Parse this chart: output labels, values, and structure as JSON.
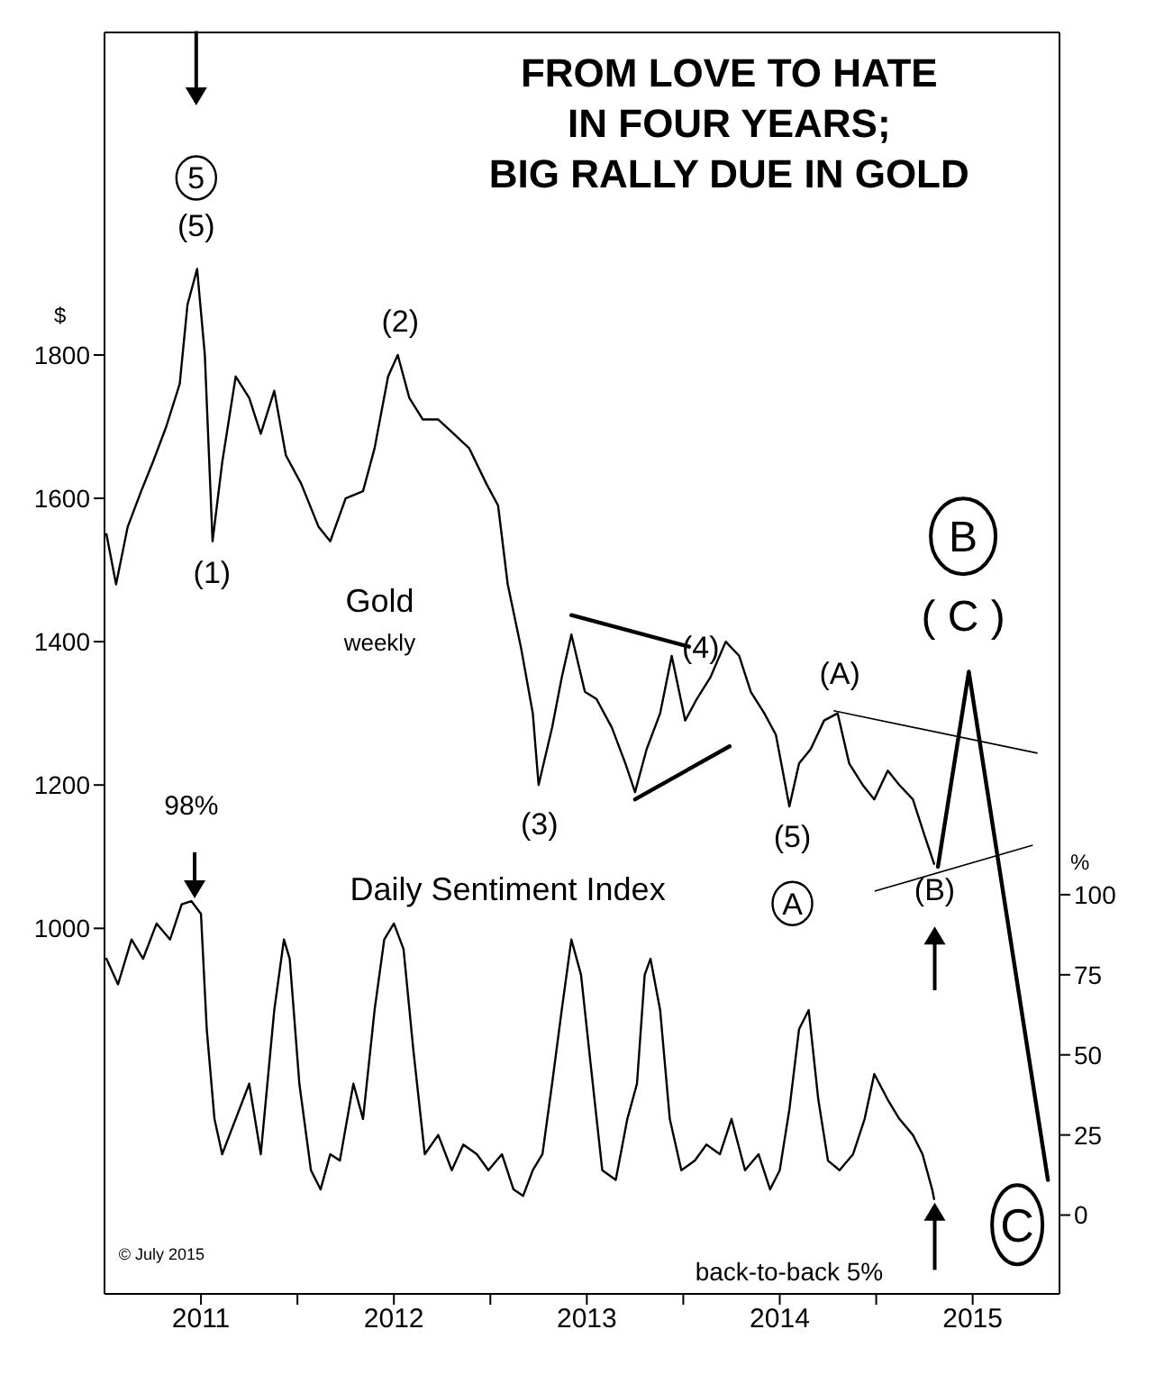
{
  "chart_data": {
    "type": "line",
    "title": "FROM LOVE TO HATE\nIN FOUR YEARS;\nBIG RALLY DUE IN GOLD",
    "ylabel": "$",
    "y2label": "%",
    "xlim": [
      2011.0,
      2015.95
    ],
    "xticks": [
      {
        "value": 2011.5,
        "label": "2011"
      },
      {
        "value": 2012,
        "label": null
      },
      {
        "value": 2012.5,
        "label": "2012"
      },
      {
        "value": 2013,
        "label": null
      },
      {
        "value": 2013.5,
        "label": "2013"
      },
      {
        "value": 2014,
        "label": null
      },
      {
        "value": 2014.5,
        "label": "2014"
      },
      {
        "value": 2015,
        "label": null
      },
      {
        "value": 2015.5,
        "label": "2015"
      }
    ],
    "ylim": [
      490,
      2250
    ],
    "yticks": [
      1000,
      1200,
      1400,
      1600,
      1800
    ],
    "y2lim": [
      -24.6,
      369.1
    ],
    "y2ticks": [
      0,
      25,
      50,
      75,
      100
    ],
    "series": [
      {
        "type": "line",
        "color": "#000000",
        "x": [
          2015.32,
          2015.48,
          2015.89
        ],
        "values": [
          1086,
          1358,
          649
        ]
      },
      {
        "type": "line",
        "color": "#000000",
        "x": [
          2013.42,
          2014.03
        ],
        "values": [
          1437,
          1393
        ]
      },
      {
        "type": "line",
        "color": "#000000",
        "x": [
          2013.75,
          2014.24
        ],
        "values": [
          1180,
          1254
        ]
      },
      {
        "name": "Gold",
        "color": "#000000",
        "x": [
          2011.01,
          2011.06,
          2011.12,
          2011.19,
          2011.25,
          2011.32,
          2011.39,
          2011.43,
          2011.48,
          2011.52,
          2011.56,
          2011.61,
          2011.68,
          2011.75,
          2011.81,
          2011.88,
          2011.94,
          2012.02,
          2012.11,
          2012.17,
          2012.25,
          2012.34,
          2012.4,
          2012.47,
          2012.52,
          2012.58,
          2012.65,
          2012.73,
          2012.81,
          2012.89,
          2012.98,
          2013.04,
          2013.09,
          2013.16,
          2013.22,
          2013.25,
          2013.32,
          2013.37,
          2013.42,
          2013.49,
          2013.55,
          2013.63,
          2013.7,
          2013.75,
          2013.81,
          2013.88,
          2013.94,
          2014.01,
          2014.07,
          2014.14,
          2014.22,
          2014.29,
          2014.35,
          2014.42,
          2014.48,
          2014.55,
          2014.6,
          2014.66,
          2014.73,
          2014.8,
          2014.86,
          2014.93,
          2014.99,
          2015.06,
          2015.12,
          2015.19,
          2015.25,
          2015.3
        ],
        "values": [
          1550,
          1480,
          1560,
          1610,
          1650,
          1700,
          1760,
          1870,
          1920,
          1800,
          1540,
          1650,
          1770,
          1740,
          1690,
          1750,
          1660,
          1620,
          1560,
          1540,
          1600,
          1610,
          1670,
          1770,
          1800,
          1740,
          1710,
          1710,
          1690,
          1670,
          1620,
          1590,
          1480,
          1390,
          1300,
          1200,
          1280,
          1350,
          1410,
          1330,
          1320,
          1280,
          1230,
          1190,
          1250,
          1300,
          1380,
          1290,
          1320,
          1350,
          1400,
          1380,
          1330,
          1300,
          1270,
          1170,
          1230,
          1250,
          1290,
          1300,
          1230,
          1200,
          1180,
          1220,
          1200,
          1180,
          1130,
          1090
        ]
      },
      {
        "name": "Daily Sentiment Index",
        "color": "#000000",
        "axis": "y2",
        "x": [
          2011.01,
          2011.07,
          2011.14,
          2011.2,
          2011.27,
          2011.34,
          2011.4,
          2011.45,
          2011.5,
          2011.53,
          2011.57,
          2011.61,
          2011.68,
          2011.75,
          2011.81,
          2011.88,
          2011.93,
          2011.96,
          2012.01,
          2012.07,
          2012.12,
          2012.17,
          2012.22,
          2012.29,
          2012.34,
          2012.4,
          2012.45,
          2012.5,
          2012.55,
          2012.6,
          2012.66,
          2012.73,
          2012.8,
          2012.86,
          2012.93,
          2012.99,
          2013.06,
          2013.12,
          2013.17,
          2013.22,
          2013.27,
          2013.32,
          2013.37,
          2013.42,
          2013.47,
          2013.52,
          2013.58,
          2013.65,
          2013.71,
          2013.76,
          2013.8,
          2013.83,
          2013.88,
          2013.93,
          2013.99,
          2014.06,
          2014.12,
          2014.19,
          2014.25,
          2014.32,
          2014.39,
          2014.45,
          2014.5,
          2014.55,
          2014.6,
          2014.65,
          2014.7,
          2014.75,
          2014.81,
          2014.88,
          2014.94,
          2014.99,
          2015.06,
          2015.12,
          2015.19,
          2015.24,
          2015.29,
          2015.3
        ],
        "values": [
          80,
          72,
          86,
          80,
          91,
          86,
          97,
          98,
          94,
          58,
          30,
          19,
          30,
          41,
          19,
          64,
          86,
          80,
          41,
          14,
          8,
          19,
          17,
          41,
          30,
          64,
          86,
          91,
          83,
          52,
          19,
          25,
          14,
          22,
          19,
          14,
          19,
          8,
          6,
          14,
          19,
          41,
          64,
          86,
          75,
          47,
          14,
          11,
          30,
          41,
          75,
          80,
          64,
          30,
          14,
          17,
          22,
          19,
          30,
          14,
          19,
          8,
          14,
          33,
          58,
          64,
          36,
          17,
          14,
          19,
          30,
          44,
          36,
          30,
          25,
          19,
          8,
          5
        ],
        "value_labels": [
          null,
          null,
          null,
          null,
          null,
          null,
          null,
          "98%",
          null,
          null,
          null,
          null,
          null,
          null,
          null,
          null,
          null,
          null,
          null,
          null,
          null,
          null,
          null,
          null,
          null,
          null,
          null,
          null,
          null,
          null,
          null,
          null,
          null,
          null,
          null,
          null,
          null,
          null,
          null,
          null,
          null,
          null,
          null,
          null,
          null,
          null,
          null,
          null,
          null,
          null,
          null,
          null,
          null,
          null,
          null,
          null,
          null,
          null,
          null,
          null,
          null,
          null,
          null,
          null,
          null,
          null,
          null,
          null,
          null,
          null,
          null,
          null,
          null,
          null,
          null,
          null,
          null,
          null
        ]
      }
    ],
    "annotations": [
      "5",
      "(5)",
      "(1)",
      "(2)",
      "(3)",
      "(4)",
      "(5)",
      "A",
      "(A)",
      "(B)",
      "B",
      "( C )",
      "weekly",
      "back-to-back 5%",
      "© July 2015",
      {
        "text": "C",
        "x": 2015.89,
        "y": 649
      }
    ]
  }
}
